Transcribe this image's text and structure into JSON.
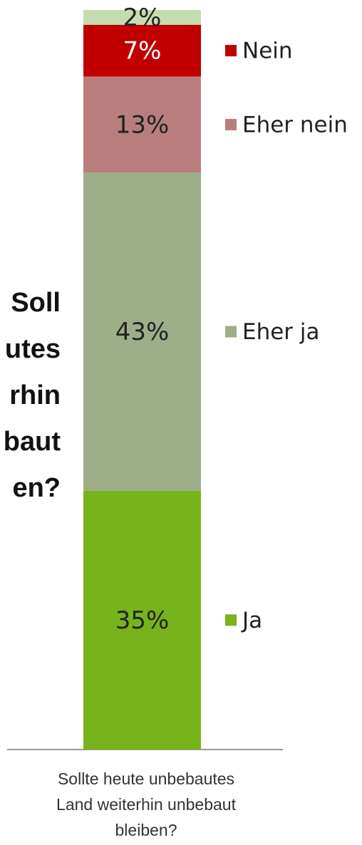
{
  "chart_data": {
    "type": "stacked_bar",
    "categories": [
      "Sollte heute unbebautes Land weiterhin unbebaut bleiben?"
    ],
    "side_text_lines": [
      "Soll",
      "utes",
      "rhin",
      "baut",
      "en?"
    ],
    "ylim": [
      0,
      100
    ],
    "series": [
      {
        "name": "Ja",
        "color": "#77b31a",
        "label_color": "#222222",
        "values": [
          35
        ],
        "value_labels": [
          "35%"
        ]
      },
      {
        "name": "Eher ja",
        "color": "#9eae88",
        "label_color": "#222222",
        "values": [
          43
        ],
        "value_labels": [
          "43%"
        ]
      },
      {
        "name": "Eher nein",
        "color": "#b97d7e",
        "label_color": "#222222",
        "values": [
          13
        ],
        "value_labels": [
          "13%"
        ]
      },
      {
        "name": "Nein",
        "color": "#c00000",
        "label_color": "#ffffff",
        "values": [
          7
        ],
        "value_labels": [
          "7%"
        ]
      },
      {
        "color": "#c5dcb0",
        "label_color": "#222222",
        "values": [
          2
        ],
        "value_labels": [
          "2%"
        ]
      }
    ]
  }
}
